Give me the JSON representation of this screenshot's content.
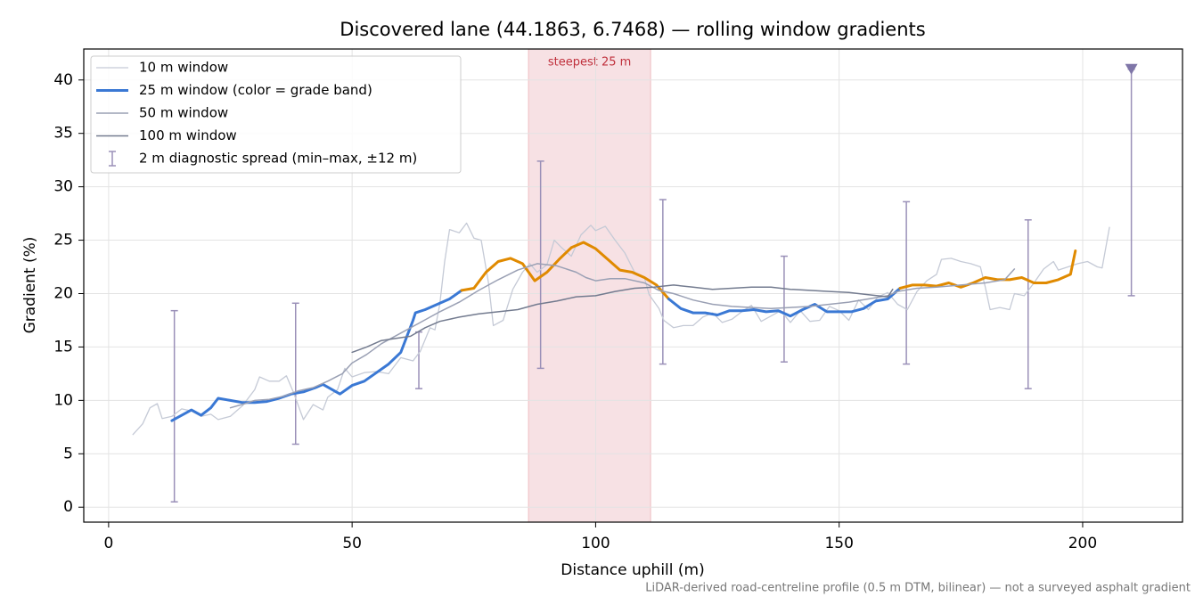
{
  "chart_data": {
    "type": "line",
    "title": "Discovered lane (44.1863, 6.7468) — rolling window gradients",
    "x_label": "Distance uphill (m)",
    "y_label": "Gradient (%)",
    "footnote": "LiDAR-derived road-centreline profile (0.5 m DTM, bilinear) — not a surveyed asphalt gradient",
    "xlim": [
      -5.1,
      220.5
    ],
    "ylim": [
      -1.4,
      42.9
    ],
    "xticks": [
      0,
      50,
      100,
      150,
      200
    ],
    "yticks": [
      0,
      5,
      10,
      15,
      20,
      25,
      30,
      35,
      40
    ],
    "grid": true,
    "legend": "upper left",
    "highlight": {
      "x": [
        86.2,
        111.3
      ],
      "label": "steepest 25 m",
      "color": "#dc7882"
    },
    "series": [
      {
        "name": "10 m window",
        "color": "#c5cad6",
        "width": 1.3,
        "x": [
          5,
          7,
          8.5,
          10,
          11,
          13,
          15,
          17,
          19,
          21,
          22.5,
          25,
          27.5,
          30,
          31,
          33,
          35,
          36.5,
          38,
          40,
          42,
          44,
          45,
          47,
          48.5,
          50,
          52.5,
          55,
          57.5,
          60,
          62.5,
          64,
          66,
          67,
          68,
          69,
          70,
          72,
          73.5,
          75,
          76.5,
          78,
          79,
          81,
          83,
          85,
          86.5,
          88,
          90,
          91.5,
          93,
          95,
          97,
          99,
          100,
          102,
          104,
          106,
          108,
          110,
          111,
          113,
          114,
          116,
          118,
          120,
          122,
          124,
          126,
          128,
          130,
          132,
          134,
          136,
          138,
          140,
          142,
          144,
          146,
          148,
          150,
          152,
          154,
          156,
          158,
          160,
          162,
          164,
          166,
          168,
          170,
          171,
          173,
          175,
          177,
          179,
          180,
          181,
          183,
          185,
          186,
          188,
          190,
          192,
          194,
          195,
          197,
          199,
          201,
          203,
          204,
          205.5
        ],
        "values": [
          6.8,
          7.8,
          9.3,
          9.7,
          8.3,
          8.5,
          9.2,
          9.0,
          8.5,
          8.7,
          8.2,
          8.5,
          9.5,
          11.0,
          12.2,
          11.8,
          11.8,
          12.3,
          10.7,
          8.2,
          9.6,
          9.1,
          10.3,
          11.0,
          13.0,
          12.2,
          12.6,
          12.7,
          12.5,
          14.0,
          13.7,
          14.6,
          16.8,
          16.6,
          19.0,
          23.0,
          26.0,
          25.7,
          26.6,
          25.2,
          25.0,
          21.0,
          17.0,
          17.5,
          20.4,
          22.0,
          22.8,
          22.0,
          22.7,
          25.0,
          24.3,
          23.5,
          25.5,
          26.4,
          25.9,
          26.3,
          25.0,
          23.8,
          22.0,
          21.5,
          19.9,
          18.6,
          17.5,
          16.8,
          17.0,
          17.0,
          17.8,
          18.2,
          17.3,
          17.6,
          18.3,
          18.9,
          17.4,
          17.9,
          18.4,
          17.3,
          18.4,
          17.4,
          17.5,
          18.8,
          18.4,
          17.5,
          19.4,
          18.5,
          19.7,
          20.1,
          19.0,
          18.5,
          20.2,
          21.2,
          21.8,
          23.2,
          23.3,
          23.0,
          22.8,
          22.5,
          20.6,
          18.5,
          18.7,
          18.5,
          20.0,
          19.8,
          21.0,
          22.3,
          23.0,
          22.2,
          22.5,
          22.8,
          23.0,
          22.5,
          22.4,
          26.2
        ]
      },
      {
        "name": "25 m window (color = grade band)",
        "color": "#3a78d4",
        "width": 3,
        "band_threshold": 20,
        "band_colors": [
          "#3a78d4",
          "#e08a00"
        ],
        "x": [
          13,
          15,
          17,
          19,
          21,
          22.5,
          25,
          27.5,
          30,
          32.5,
          35,
          37.5,
          40,
          42.5,
          44,
          47.5,
          50,
          52.5,
          55,
          57.5,
          60,
          62.5,
          63,
          65,
          67.5,
          70,
          72.5,
          75,
          77.5,
          80,
          82.5,
          85,
          87.5,
          90,
          92.5,
          95,
          97.5,
          100,
          102.5,
          105,
          107.5,
          110,
          112.5,
          115,
          117.5,
          120,
          122.5,
          125,
          127.5,
          130,
          132.5,
          135,
          137.5,
          140,
          142.5,
          145,
          147.5,
          150,
          152.5,
          155,
          157.5,
          160,
          162.5,
          165,
          167.5,
          170,
          172.5,
          175,
          177.5,
          180,
          182.5,
          185,
          187.5,
          190,
          192.5,
          195,
          197.5,
          198.5
        ],
        "values": [
          8.1,
          8.6,
          9.1,
          8.6,
          9.3,
          10.2,
          10.0,
          9.8,
          9.8,
          9.9,
          10.2,
          10.6,
          10.8,
          11.2,
          11.5,
          10.6,
          11.4,
          11.8,
          12.6,
          13.4,
          14.5,
          17.5,
          18.2,
          18.5,
          19.0,
          19.5,
          20.3,
          20.5,
          22.0,
          23.0,
          23.3,
          22.8,
          21.2,
          22.0,
          23.2,
          24.3,
          24.8,
          24.2,
          23.2,
          22.2,
          22.0,
          21.5,
          20.8,
          19.5,
          18.6,
          18.2,
          18.2,
          18.0,
          18.4,
          18.4,
          18.5,
          18.3,
          18.4,
          17.9,
          18.5,
          19.0,
          18.3,
          18.3,
          18.3,
          18.6,
          19.3,
          19.5,
          20.5,
          20.8,
          20.8,
          20.7,
          21.0,
          20.6,
          21.0,
          21.5,
          21.3,
          21.3,
          21.5,
          21.0,
          21.0,
          21.3,
          21.8,
          24.0
        ]
      },
      {
        "name": "50 m window",
        "color": "#9aa0b4",
        "width": 1.5,
        "x": [
          25,
          28,
          30,
          33,
          36,
          39,
          42,
          45,
          48,
          50,
          53,
          56,
          60,
          64,
          68,
          72,
          76,
          80,
          84,
          88,
          92,
          96,
          98,
          100,
          103,
          106,
          110,
          113,
          116,
          120,
          124,
          128,
          132,
          136,
          140,
          144,
          148,
          152,
          156,
          160,
          162,
          166,
          170,
          175,
          180,
          184,
          186
        ],
        "values": [
          9.3,
          9.7,
          10.0,
          10.1,
          10.4,
          10.9,
          11.2,
          11.8,
          12.5,
          13.5,
          14.3,
          15.3,
          16.3,
          17.3,
          18.3,
          19.2,
          20.3,
          21.3,
          22.2,
          22.8,
          22.6,
          22.0,
          21.5,
          21.2,
          21.4,
          21.4,
          21.0,
          20.3,
          20.0,
          19.4,
          19.0,
          18.8,
          18.7,
          18.6,
          18.7,
          18.8,
          19.0,
          19.2,
          19.5,
          19.8,
          20.2,
          20.5,
          20.6,
          20.8,
          21.0,
          21.3,
          22.3
        ]
      },
      {
        "name": "100 m window",
        "color": "#737b8f",
        "width": 1.5,
        "x": [
          50,
          53,
          56,
          59,
          62,
          65,
          68,
          72,
          76,
          80,
          84,
          88,
          92,
          96,
          100,
          104,
          108,
          112,
          116,
          120,
          124,
          128,
          132,
          136,
          140,
          144,
          148,
          152,
          156,
          160,
          161
        ],
        "values": [
          14.5,
          15.0,
          15.6,
          15.8,
          16.0,
          16.8,
          17.4,
          17.8,
          18.1,
          18.3,
          18.5,
          19.0,
          19.3,
          19.7,
          19.8,
          20.2,
          20.5,
          20.6,
          20.8,
          20.6,
          20.4,
          20.5,
          20.6,
          20.6,
          20.4,
          20.3,
          20.2,
          20.1,
          19.9,
          19.7,
          20.4
        ]
      }
    ],
    "errorbars": {
      "name": "2 m diagnostic spread (min–max, ±12 m)",
      "color": "#9a90b8",
      "x": [
        13.5,
        38.4,
        63.7,
        88.7,
        113.8,
        138.7,
        163.8,
        188.8,
        210
      ],
      "low": [
        0.5,
        5.9,
        11.1,
        13.0,
        13.4,
        13.6,
        13.4,
        11.1,
        19.8
      ],
      "high": [
        18.4,
        19.1,
        16.4,
        32.4,
        28.8,
        23.5,
        28.6,
        26.9,
        41
      ]
    },
    "markers": [
      {
        "x": 210,
        "y": 41,
        "color": "#7f76a8"
      }
    ]
  }
}
